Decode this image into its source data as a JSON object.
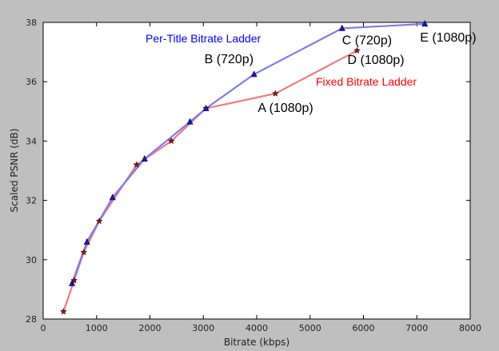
{
  "chart_data": {
    "type": "line",
    "xlabel": "Bitrate (kbps)",
    "ylabel": "Scaled PSNR (dB)",
    "xlim": [
      0,
      8000
    ],
    "ylim": [
      28,
      38
    ],
    "xticks": [
      0,
      1000,
      2000,
      3000,
      4000,
      5000,
      6000,
      7000,
      8000
    ],
    "yticks": [
      28,
      30,
      32,
      34,
      36,
      38
    ],
    "grid": false,
    "legend": "inline-labels",
    "series": [
      {
        "name": "Per-Title Bitrate Ladder",
        "color": "#0000ff",
        "line_color": "#7b7bf0",
        "marker": "triangle",
        "x": [
          540,
          820,
          1300,
          1900,
          2750,
          3050,
          3950,
          5600,
          7150
        ],
        "y": [
          29.2,
          30.6,
          32.1,
          33.4,
          34.65,
          35.1,
          36.25,
          37.8,
          37.95
        ]
      },
      {
        "name": "Fixed Bitrate Ladder",
        "color": "#ff0000",
        "line_color": "#f07b7b",
        "marker": "star",
        "x": [
          380,
          580,
          760,
          1050,
          1750,
          2400,
          3050,
          4350,
          5880
        ],
        "y": [
          28.25,
          29.3,
          30.25,
          31.3,
          33.2,
          34.0,
          35.1,
          35.6,
          37.05
        ]
      }
    ],
    "annotations": [
      {
        "text": "A (1080p)",
        "x": 4350,
        "y": 35.6
      },
      {
        "text": "B (720p)",
        "x": 3950,
        "y": 36.25
      },
      {
        "text": "C (720p)",
        "x": 5600,
        "y": 37.8
      },
      {
        "text": "D (1080p)",
        "x": 5880,
        "y": 37.05
      },
      {
        "text": "E (1080p)",
        "x": 7150,
        "y": 37.95
      }
    ]
  }
}
